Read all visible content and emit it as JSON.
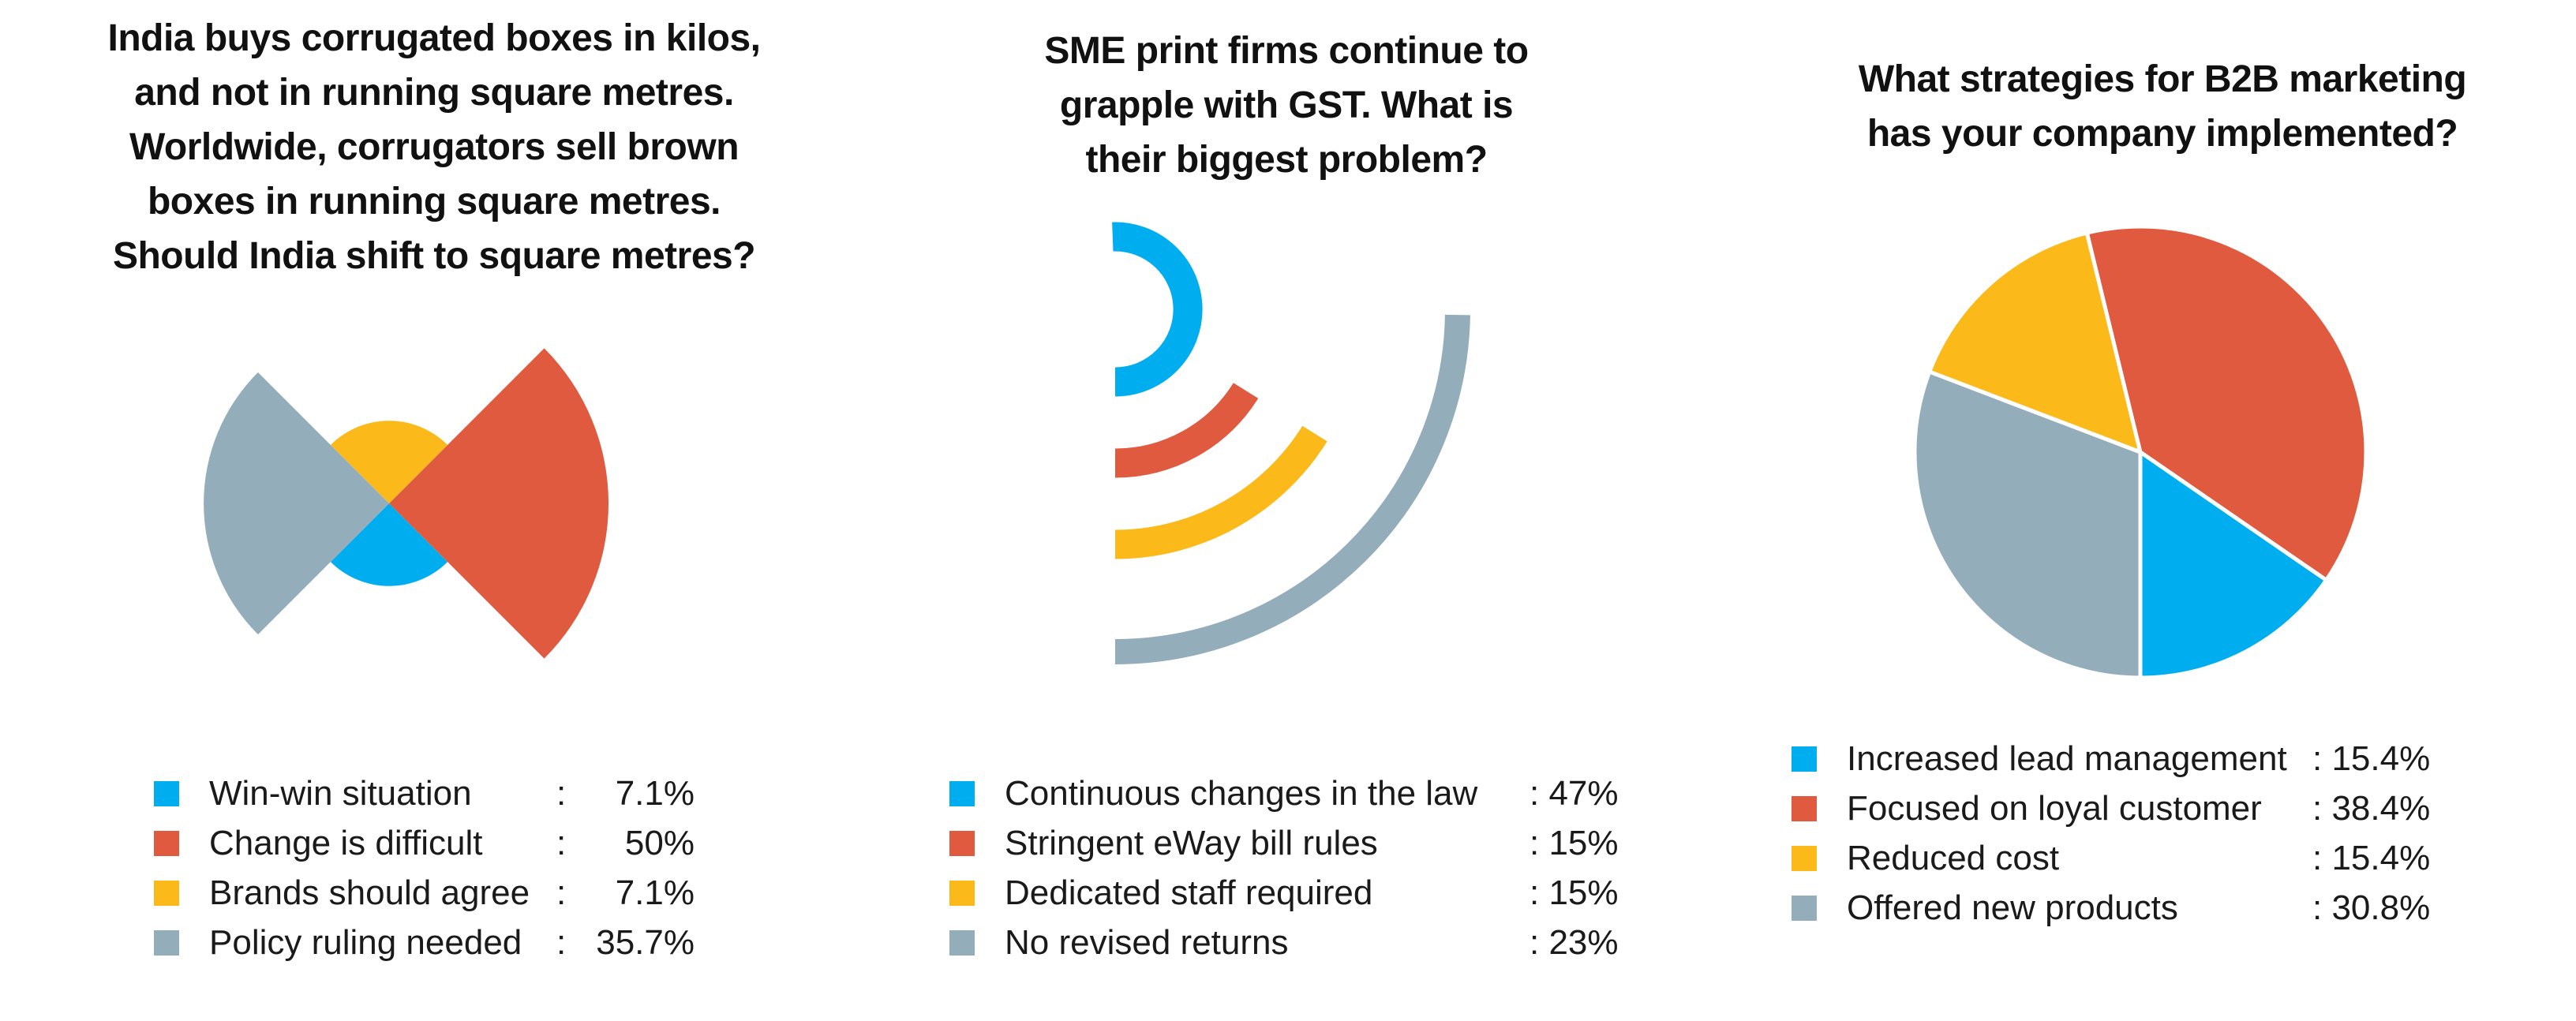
{
  "chart_data": [
    {
      "type": "polar-area",
      "title": "India buys corrugated boxes in kilos, and not in running square metres. Worldwide, corrugators sell brown boxes in running square metres. Should India shift to square metres?",
      "title_lines": [
        "India buys corrugated boxes in kilos,",
        "and not in running square metres.",
        "Worldwide, corrugators sell brown",
        "boxes in running square metres.",
        "Should India shift to square metres?"
      ],
      "categories": [
        "Win-win situation",
        "Change is difficult",
        "Brands should agree",
        "Policy ruling needed"
      ],
      "values": [
        7.1,
        50,
        7.1,
        35.7
      ],
      "value_labels": [
        "7.1%",
        "50%",
        "7.1%",
        "35.7%"
      ],
      "colors": [
        "#00aeef",
        "#e05a3f",
        "#fbb91a",
        "#93adbb"
      ],
      "legend": "bottom"
    },
    {
      "type": "radial-bar",
      "title": "SME print firms continue to grapple with GST. What is their biggest problem?",
      "title_lines": [
        "SME print firms continue to",
        "grapple with GST. What is",
        "their biggest problem?"
      ],
      "categories": [
        "Continuous changes in the law",
        "Stringent eWay bill rules",
        "Dedicated staff required",
        "No revised returns"
      ],
      "values": [
        47,
        15,
        15,
        23
      ],
      "value_labels": [
        ": 47%",
        ": 15%",
        ": 15%",
        ": 23%"
      ],
      "colors": [
        "#00aeef",
        "#e05a3f",
        "#fbb91a",
        "#93adbb"
      ],
      "legend": "bottom"
    },
    {
      "type": "pie",
      "title": "What strategies for B2B marketing has your company implemented?",
      "title_lines": [
        "What strategies for B2B marketing",
        "has your company implemented?"
      ],
      "categories": [
        "Increased lead management",
        "Focused on loyal customer",
        "Reduced cost",
        "Offered new products"
      ],
      "values": [
        15.4,
        38.4,
        15.4,
        30.8
      ],
      "value_labels": [
        ": 15.4%",
        ": 38.4%",
        ": 15.4%",
        ": 30.8%"
      ],
      "colors": [
        "#00aeef",
        "#e05a3f",
        "#fbb91a",
        "#93adbb"
      ],
      "legend": "bottom"
    }
  ],
  "panel1": {
    "title_lines": [
      "India buys corrugated boxes in kilos,",
      "and not in running square metres.",
      "Worldwide, corrugators sell brown",
      "boxes in running square metres.",
      "Should India shift to square metres?"
    ],
    "legend": [
      {
        "label": "Win-win situation",
        "sep": ":",
        "value": "7.1%",
        "color": "#00aeef"
      },
      {
        "label": "Change is difficult",
        "sep": ":",
        "value": "50%",
        "color": "#e05a3f"
      },
      {
        "label": "Brands should agree",
        "sep": ":",
        "value": "7.1%",
        "color": "#fbb91a"
      },
      {
        "label": "Policy ruling needed",
        "sep": ":",
        "value": "35.7%",
        "color": "#93adbb"
      }
    ]
  },
  "panel2": {
    "title_lines": [
      "SME print firms continue to",
      "grapple with GST. What is",
      "their biggest problem?"
    ],
    "legend": [
      {
        "label": "Continuous changes in the law",
        "value": ": 47%",
        "color": "#00aeef"
      },
      {
        "label": "Stringent eWay bill rules",
        "value": ": 15%",
        "color": "#e05a3f"
      },
      {
        "label": "Dedicated staff required",
        "value": ": 15%",
        "color": "#fbb91a"
      },
      {
        "label": "No revised returns",
        "value": ": 23%",
        "color": "#93adbb"
      }
    ]
  },
  "panel3": {
    "title_lines": [
      "What strategies for B2B marketing",
      "has your company implemented?"
    ],
    "legend": [
      {
        "label": "Increased lead management",
        "value": ": 15.4%",
        "color": "#00aeef"
      },
      {
        "label": "Focused on loyal customer",
        "value": ": 38.4%",
        "color": "#e05a3f"
      },
      {
        "label": "Reduced cost",
        "value": ": 15.4%",
        "color": "#fbb91a"
      },
      {
        "label": "Offered new products",
        "value": ": 30.8%",
        "color": "#93adbb"
      }
    ]
  }
}
